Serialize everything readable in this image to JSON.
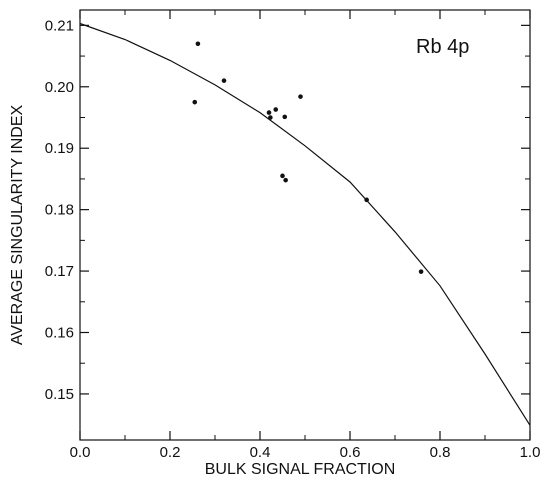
{
  "chart_data": {
    "type": "scatter",
    "xlabel": "BULK SIGNAL FRACTION",
    "ylabel": "AVERAGE SINGULARITY INDEX",
    "annotation": "Rb 4p",
    "xlim": [
      0.0,
      1.0
    ],
    "ylim": [
      0.1425,
      0.2125
    ],
    "x_ticks": [
      "0.0",
      "0.2",
      "0.4",
      "0.6",
      "0.8",
      "1.0"
    ],
    "y_ticks": [
      "0.15",
      "0.16",
      "0.17",
      "0.18",
      "0.19",
      "0.20",
      "0.21"
    ],
    "grid": false,
    "series": [
      {
        "kind": "points",
        "x": [
          0.255,
          0.262,
          0.32,
          0.42,
          0.423,
          0.435,
          0.455,
          0.45,
          0.457,
          0.49,
          0.637,
          0.758
        ],
        "y": [
          0.1975,
          0.207,
          0.201,
          0.1958,
          0.195,
          0.1963,
          0.1951,
          0.1855,
          0.1848,
          0.1984,
          0.1816,
          0.1699
        ]
      },
      {
        "kind": "line",
        "x": [
          0.0,
          0.1,
          0.2,
          0.3,
          0.4,
          0.5,
          0.6,
          0.7,
          0.8,
          0.9,
          1.0
        ],
        "y": [
          0.2103,
          0.2077,
          0.2043,
          0.2003,
          0.1958,
          0.1904,
          0.1845,
          0.1764,
          0.1676,
          0.1565,
          0.1449
        ]
      }
    ],
    "colors": {
      "axis": "#111111",
      "marks": "#111111"
    }
  }
}
